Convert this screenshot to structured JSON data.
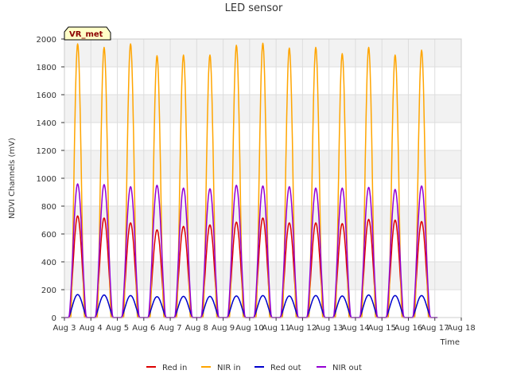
{
  "chart_data": {
    "type": "line",
    "title": "LED sensor",
    "xlabel": "Time",
    "ylabel": "NDVI Channels (mV)",
    "ylim": [
      0,
      2000
    ],
    "yticks": [
      0,
      200,
      400,
      600,
      800,
      1000,
      1200,
      1400,
      1600,
      1800,
      2000
    ],
    "xlim": [
      3,
      18
    ],
    "xtick_values": [
      3,
      4,
      5,
      6,
      7,
      8,
      9,
      10,
      11,
      12,
      13,
      14,
      15,
      16,
      17,
      18
    ],
    "xtick_labels": [
      "Aug 3",
      "Aug 4",
      "Aug 5",
      "Aug 6",
      "Aug 7",
      "Aug 8",
      "Aug 9",
      "Aug 10",
      "Aug 11",
      "Aug 12",
      "Aug 13",
      "Aug 14",
      "Aug 15",
      "Aug 16",
      "Aug 17",
      "Aug 18"
    ],
    "grid": true,
    "legend_position": "bottom",
    "annotation": "VR_met",
    "day_centers": [
      3.5,
      4.5,
      5.5,
      6.5,
      7.5,
      8.5,
      9.5,
      10.5,
      11.5,
      12.5,
      13.5,
      14.5,
      15.5,
      16.5
    ],
    "series": [
      {
        "name": "Red in",
        "color": "#dd0000",
        "half_width": 0.32,
        "peaks": [
          730,
          715,
          680,
          630,
          655,
          665,
          685,
          715,
          680,
          680,
          675,
          705,
          700,
          690
        ]
      },
      {
        "name": "NIR in",
        "color": "#ffa500",
        "half_width": 0.26,
        "peaks": [
          1965,
          1940,
          1965,
          1880,
          1885,
          1885,
          1955,
          1970,
          1935,
          1940,
          1895,
          1940,
          1885,
          1920
        ]
      },
      {
        "name": "Red out",
        "color": "#0000cc",
        "half_width": 0.36,
        "peaks": [
          165,
          162,
          158,
          150,
          152,
          152,
          155,
          158,
          155,
          158,
          155,
          162,
          158,
          158
        ]
      },
      {
        "name": "NIR out",
        "color": "#9400d3",
        "half_width": 0.33,
        "peaks": [
          960,
          955,
          940,
          950,
          930,
          925,
          950,
          945,
          940,
          930,
          930,
          935,
          920,
          945
        ]
      }
    ]
  }
}
